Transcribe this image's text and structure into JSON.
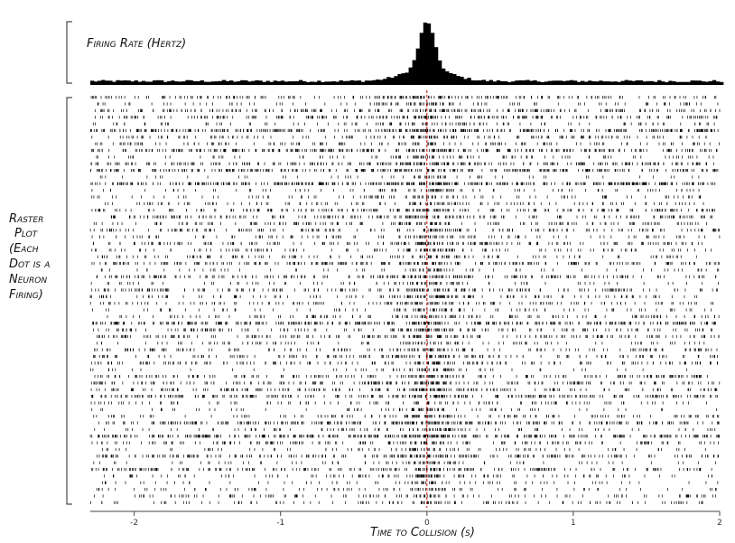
{
  "chart_data": [
    {
      "type": "bar",
      "label": "Firing Rate (Hertz)",
      "x_range": [
        -2.3,
        2.0
      ],
      "bin_width": 0.025,
      "peak_at": 0.0,
      "color": "#000000"
    },
    {
      "type": "scatter",
      "label_lines": [
        "Raster",
        "Plot",
        "(Each",
        "Dot is a",
        "Neuron",
        "Firing)"
      ],
      "xlabel": "Time to Collision (s)",
      "xlim": [
        -2.3,
        2.0
      ],
      "x_ticks": [
        -2,
        -1,
        0,
        1,
        2
      ],
      "x_tick_labels": [
        "-2",
        "-1",
        "0",
        "1",
        "2"
      ],
      "trials": 62,
      "event_time": 0,
      "event_line_color": "#cc0000",
      "tick_color": "#000000"
    }
  ]
}
